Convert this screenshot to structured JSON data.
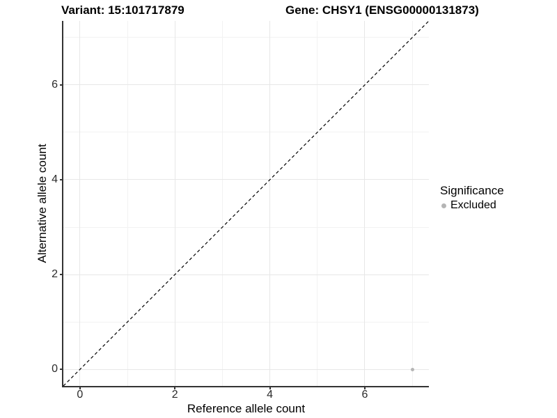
{
  "figure": {
    "background": "#ffffff",
    "title_left": "Variant: 15:101717879",
    "title_right": "Gene: CHSY1 (ENSG00000131873)"
  },
  "chart_data": {
    "type": "scatter",
    "title": "Variant: 15:101717879 — Gene: CHSY1 (ENSG00000131873)",
    "xlabel": "Reference allele count",
    "ylabel": "Alternative allele count",
    "xlim": [
      -0.35,
      7.35
    ],
    "ylim": [
      -0.35,
      7.35
    ],
    "xticks": [
      0,
      2,
      4,
      6
    ],
    "yticks": [
      0,
      2,
      4,
      6
    ],
    "grid": true,
    "grid_major_lines": [
      0,
      2,
      4,
      6
    ],
    "grid_minor_lines": [
      1,
      3,
      5,
      7
    ],
    "identity_line": {
      "style": "dashed",
      "color": "#000000",
      "from": [
        -0.35,
        -0.35
      ],
      "to": [
        7.35,
        7.35
      ]
    },
    "series": [
      {
        "name": "Excluded",
        "color": "#b5b5b5",
        "points": [
          {
            "x": 7,
            "y": 0
          }
        ]
      }
    ],
    "legend": {
      "title": "Significance",
      "position": "right",
      "items": [
        {
          "label": "Excluded",
          "color": "#b5b5b5"
        }
      ]
    }
  },
  "colors": {
    "axis_line": "#333333",
    "tick_label": "#2b2b2b",
    "grid_major": "#e7e7e7",
    "grid_minor": "#f2f2f2",
    "excluded_point": "#b5b5b5",
    "background": "#ffffff"
  }
}
